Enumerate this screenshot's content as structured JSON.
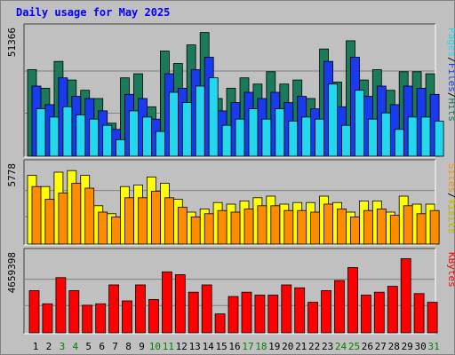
{
  "chart_data": {
    "type": "bar",
    "title": "Daily usage for May 2025",
    "categories": [
      "1",
      "2",
      "3",
      "4",
      "5",
      "6",
      "7",
      "8",
      "9",
      "10",
      "11",
      "12",
      "13",
      "14",
      "15",
      "16",
      "17",
      "18",
      "19",
      "20",
      "21",
      "22",
      "23",
      "24",
      "25",
      "26",
      "27",
      "28",
      "29",
      "30",
      "31"
    ],
    "weekend_days": [
      "3",
      "4",
      "10",
      "11",
      "17",
      "18",
      "24",
      "25",
      "31"
    ],
    "panels": [
      {
        "ymax_label": "51366",
        "axis_labels": [
          "Pages",
          "/",
          "Files",
          "/",
          "Hits"
        ],
        "series": [
          {
            "name": "Hits",
            "color": "#1a7a5a",
            "values": [
              42,
              33,
              46,
              37,
              32,
              28,
              16,
              38,
              40,
              24,
              51,
              45,
              54,
              60,
              28,
              33,
              38,
              35,
              41,
              35,
              37,
              28,
              52,
              36,
              56,
              37,
              42,
              32,
              41,
              41,
              40
            ]
          },
          {
            "name": "Files",
            "color": "#1a3aee",
            "values": [
              34,
              25,
              38,
              29,
              28,
              22,
              13,
              30,
              28,
              18,
              40,
              33,
              42,
              48,
              22,
              26,
              31,
              28,
              31,
              26,
              29,
              23,
              46,
              24,
              48,
              29,
              34,
              25,
              34,
              33,
              30
            ]
          },
          {
            "name": "Pages",
            "color": "#22d7ee",
            "values": [
              23,
              19,
              24,
              20,
              18,
              15,
              8,
              22,
              19,
              12,
              31,
              26,
              34,
              38,
              15,
              18,
              23,
              18,
              23,
              17,
              19,
              18,
              35,
              15,
              32,
              18,
              21,
              13,
              19,
              19,
              17
            ]
          }
        ]
      },
      {
        "ymax_label": "5778",
        "axis_labels": [
          "Sites",
          "/",
          "Visits"
        ],
        "series": [
          {
            "name": "Visits",
            "color": "#ffff00",
            "values": [
              4.3,
              3.6,
              4.5,
              4.6,
              4.3,
              2.4,
              1.9,
              3.6,
              3.7,
              4.2,
              3.8,
              2.8,
              2.0,
              2.2,
              2.6,
              2.5,
              2.7,
              2.9,
              3.0,
              2.5,
              2.6,
              2.6,
              3.0,
              2.6,
              2.0,
              2.7,
              2.7,
              2.0,
              3.0,
              2.5,
              2.5
            ]
          },
          {
            "name": "Sites",
            "color": "#ff8c00",
            "values": [
              3.6,
              2.8,
              3.2,
              3.8,
              3.5,
              2.0,
              1.7,
              2.9,
              2.9,
              3.3,
              2.9,
              2.3,
              1.7,
              1.9,
              2.1,
              2.0,
              2.2,
              2.4,
              2.4,
              2.1,
              2.1,
              2.0,
              2.5,
              2.2,
              1.7,
              2.1,
              2.2,
              1.8,
              2.4,
              1.9,
              2.1
            ]
          }
        ]
      },
      {
        "ymax_label": "4659398",
        "axis_labels": [
          "KBytes"
        ],
        "series": [
          {
            "name": "KBytes",
            "color": "#ff0000",
            "values": [
              2.9,
              2.0,
              3.8,
              2.9,
              1.9,
              2.0,
              3.3,
              2.2,
              3.3,
              2.3,
              4.2,
              4.0,
              2.8,
              3.3,
              1.3,
              2.5,
              2.8,
              2.6,
              2.6,
              3.3,
              3.1,
              2.1,
              2.9,
              3.6,
              4.5,
              2.6,
              2.8,
              3.2,
              5.1,
              2.7,
              2.1
            ]
          }
        ]
      }
    ]
  },
  "colors": {
    "title": "#0000ff",
    "weekday_label": "#000000",
    "weekend_label": "#008000",
    "plot_bg": "#c0c0c0"
  }
}
